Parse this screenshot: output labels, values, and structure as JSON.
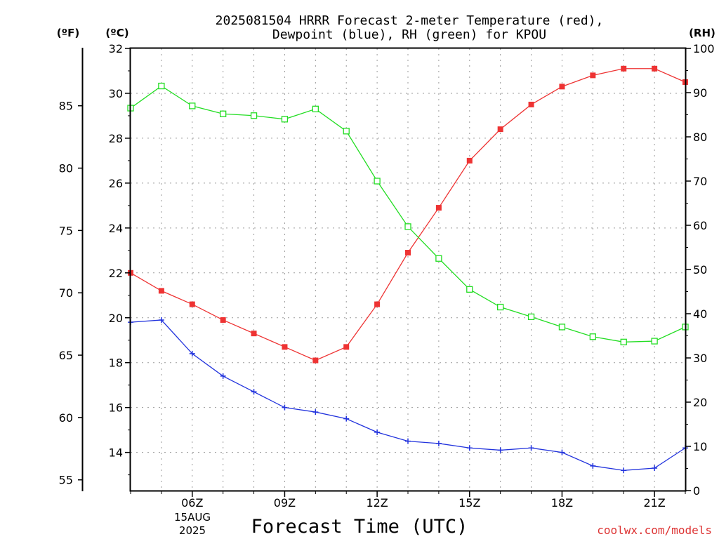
{
  "chart_data": {
    "type": "line",
    "title_line1": "2025081504 HRRR Forecast 2-meter Temperature (red),",
    "title_line2": "Dewpoint (blue), RH (green) for KPOU",
    "xlabel": "Forecast Time (UTC)",
    "date_line1": "15AUG",
    "date_line2": "2025",
    "credit": "coolwx.com/models",
    "x_tick_labels": [
      "06Z",
      "09Z",
      "12Z",
      "15Z",
      "18Z",
      "21Z"
    ],
    "x_tick_hours": [
      6,
      9,
      12,
      15,
      18,
      21
    ],
    "x_range_hours": [
      4,
      22
    ],
    "left_c_axis": {
      "label": "(ºC)",
      "range": [
        12.3,
        32
      ],
      "ticks": [
        14,
        16,
        18,
        20,
        22,
        24,
        26,
        28,
        30,
        32
      ]
    },
    "left_f_axis": {
      "label": "(ºF)",
      "ticks": [
        55,
        60,
        65,
        70,
        75,
        80,
        85
      ]
    },
    "right_rh_axis": {
      "label": "(RH)",
      "range": [
        0,
        100
      ],
      "ticks": [
        0,
        10,
        20,
        30,
        40,
        50,
        60,
        70,
        80,
        90,
        100
      ]
    },
    "hours": [
      4,
      5,
      6,
      7,
      8,
      9,
      10,
      11,
      12,
      13,
      14,
      15,
      16,
      17,
      18,
      19,
      20,
      21,
      22
    ],
    "series": [
      {
        "key": "temperature",
        "color": "#ee3333",
        "marker": "filled-square",
        "axis": "c",
        "values": [
          22.0,
          21.2,
          20.6,
          19.9,
          19.3,
          18.7,
          18.1,
          18.7,
          20.6,
          22.9,
          24.9,
          27.0,
          28.4,
          29.5,
          30.3,
          30.8,
          31.1,
          31.1,
          30.5
        ]
      },
      {
        "key": "dewpoint",
        "color": "#2233dd",
        "marker": "plus",
        "axis": "c",
        "values": [
          19.8,
          19.9,
          18.4,
          17.4,
          16.7,
          16.0,
          15.8,
          15.5,
          14.9,
          14.5,
          14.4,
          14.2,
          14.1,
          14.2,
          14.0,
          13.4,
          13.2,
          13.3,
          14.2
        ]
      },
      {
        "key": "rh",
        "color": "#22dd22",
        "marker": "open-square",
        "axis": "rh",
        "values": [
          86.5,
          91.5,
          87.0,
          85.2,
          84.8,
          84.0,
          86.3,
          81.3,
          70.0,
          59.7,
          52.5,
          45.5,
          41.5,
          39.3,
          37.0,
          34.8,
          33.6,
          33.8,
          37.0
        ]
      }
    ]
  }
}
